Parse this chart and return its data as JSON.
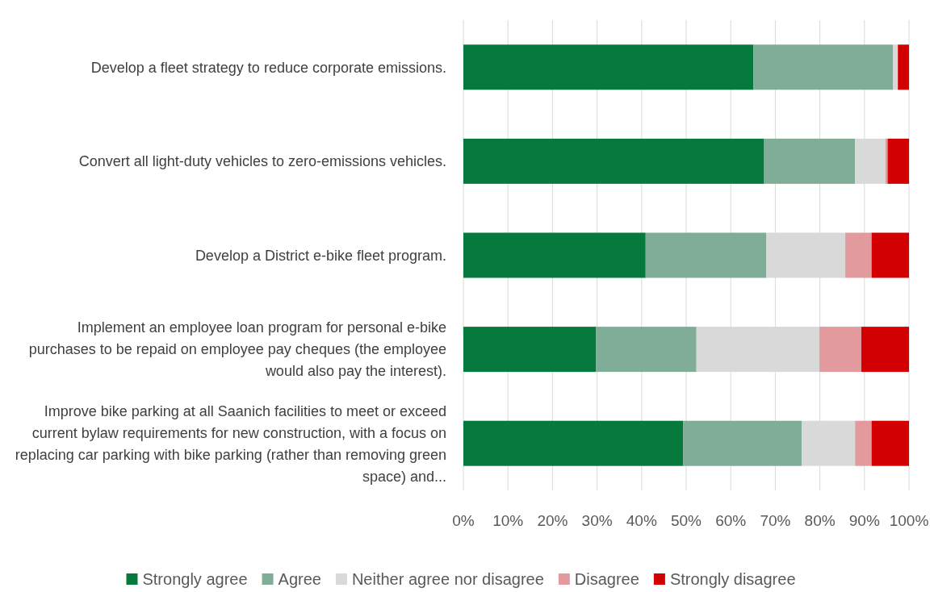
{
  "chart_data": {
    "type": "bar",
    "orientation": "horizontal",
    "stacked": true,
    "categories": [
      "Develop a fleet strategy to reduce corporate emissions.",
      "Convert all light-duty vehicles to zero-emissions vehicles.",
      "Develop a District e-bike fleet program.",
      "Implement an employee loan program for personal e-bike purchases to be repaid on employee pay cheques (the employee would also pay the interest).",
      "Improve bike parking at all Saanich facilities to meet or exceed current bylaw requirements for new construction, with a focus on replacing car parking with bike parking (rather than removing green space) and..."
    ],
    "series": [
      {
        "name": "Strongly agree",
        "color": "#067a3d",
        "values": [
          65.1,
          67.5,
          40.9,
          29.8,
          49.3
        ]
      },
      {
        "name": "Agree",
        "color": "#80ad98",
        "values": [
          31.3,
          20.4,
          27.1,
          22.5,
          26.6
        ]
      },
      {
        "name": "Neither agree nor disagree",
        "color": "#d9d9d9",
        "values": [
          1.1,
          6.8,
          17.7,
          27.6,
          12.0
        ]
      },
      {
        "name": "Disagree",
        "color": "#e39a9c",
        "values": [
          0,
          0.5,
          5.9,
          9.4,
          3.7
        ]
      },
      {
        "name": "Strongly disagree",
        "color": "#d20000",
        "values": [
          2.5,
          4.8,
          8.4,
          10.7,
          8.4
        ]
      }
    ],
    "xlim": [
      0,
      100
    ],
    "xticks": [
      {
        "value": 0,
        "label": "0%"
      },
      {
        "value": 10,
        "label": "10%"
      },
      {
        "value": 20,
        "label": "20%"
      },
      {
        "value": 30,
        "label": "30%"
      },
      {
        "value": 40,
        "label": "40%"
      },
      {
        "value": 50,
        "label": "50%"
      },
      {
        "value": 60,
        "label": "60%"
      },
      {
        "value": 70,
        "label": "70%"
      },
      {
        "value": 80,
        "label": "80%"
      },
      {
        "value": 90,
        "label": "90%"
      },
      {
        "value": 100,
        "label": "100%"
      }
    ],
    "grid": "x",
    "legend": "bottom"
  }
}
